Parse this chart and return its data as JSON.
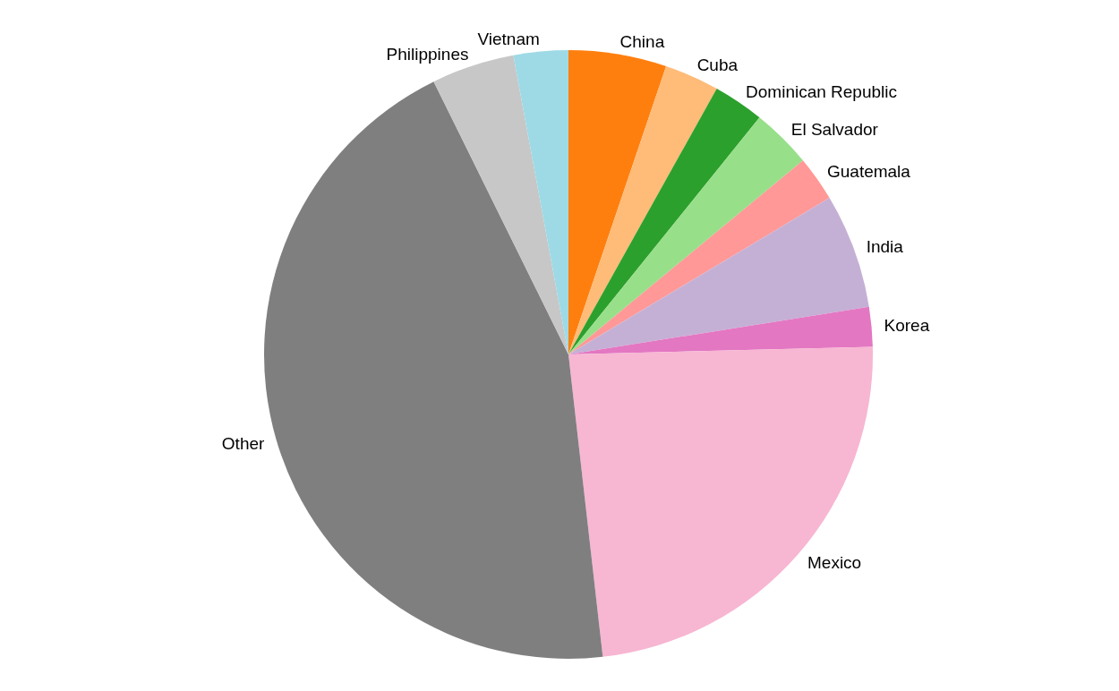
{
  "chart_data": {
    "type": "pie",
    "categories": [
      "China",
      "Cuba",
      "Dominican Republic",
      "El Salvador",
      "Guatemala",
      "India",
      "Korea",
      "Mexico",
      "Other",
      "Philippines",
      "Vietnam"
    ],
    "values": [
      5.2,
      2.9,
      2.7,
      3.2,
      2.4,
      6.1,
      2.1,
      23.6,
      44.5,
      4.4,
      2.9
    ],
    "colors": [
      "#ff7f0e",
      "#ffbb78",
      "#2ca02c",
      "#98df8a",
      "#ff9896",
      "#c5b0d5",
      "#e377c2",
      "#f7b6d2",
      "#7f7f7f",
      "#c7c7c7",
      "#9edae5"
    ],
    "legend": false
  }
}
